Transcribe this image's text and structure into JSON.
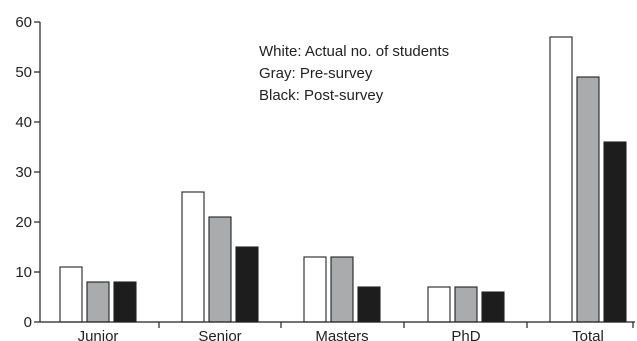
{
  "chart_data": {
    "type": "bar",
    "categories": [
      "Junior",
      "Senior",
      "Masters",
      "PhD",
      "Total"
    ],
    "series": [
      {
        "values": [
          11,
          26,
          13,
          7,
          57
        ],
        "color": "#ffffff"
      },
      {
        "values": [
          8,
          21,
          13,
          7,
          49
        ],
        "color": "#a9abad"
      },
      {
        "values": [
          8,
          15,
          7,
          6,
          36
        ],
        "color": "#1d1d1d"
      }
    ],
    "ylim": [
      0,
      60
    ],
    "yticks": [
      0,
      10,
      20,
      30,
      40,
      50,
      60
    ],
    "xlabel": "",
    "ylabel": "",
    "legend": {
      "position": "top-center",
      "entries": [
        "White: Actual no. of students",
        "Gray: Pre-survey",
        "Black: Post-survey"
      ]
    },
    "grid": false
  }
}
